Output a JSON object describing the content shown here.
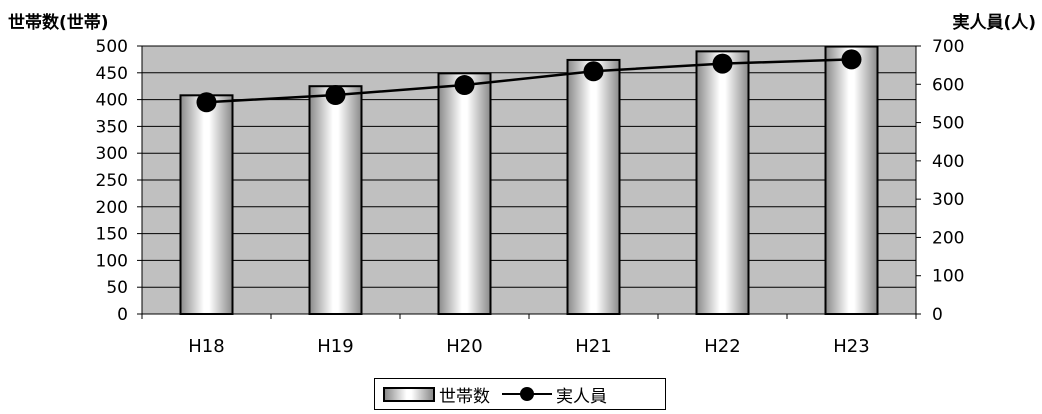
{
  "chart_data": {
    "type": "bar",
    "categories": [
      "H18",
      "H19",
      "H20",
      "H21",
      "H22",
      "H23"
    ],
    "ylabel_left": "世帯数(世帯)",
    "ylabel_right": "実人員(人)",
    "ylim_left": [
      0,
      500
    ],
    "ylim_right": [
      0,
      700
    ],
    "yticks_left": [
      "0",
      "50",
      "100",
      "150",
      "200",
      "250",
      "300",
      "350",
      "400",
      "450",
      "500"
    ],
    "yticks_right": [
      "0",
      "100",
      "200",
      "300",
      "400",
      "500",
      "600",
      "700"
    ],
    "grid": true,
    "legend_position": "bottom",
    "series": [
      {
        "name": "世帯数",
        "type": "bar",
        "axis": "left",
        "values": [
          408,
          425,
          449,
          474,
          490,
          499
        ]
      },
      {
        "name": "実人員",
        "type": "line",
        "axis": "right",
        "values": [
          553,
          572,
          598,
          634,
          654,
          665
        ]
      }
    ],
    "colors": {
      "plot_bg": "#c0c0c0",
      "bar_edge": "#8a8a8a",
      "bar_center": "#ffffff",
      "line": "#000000"
    }
  }
}
